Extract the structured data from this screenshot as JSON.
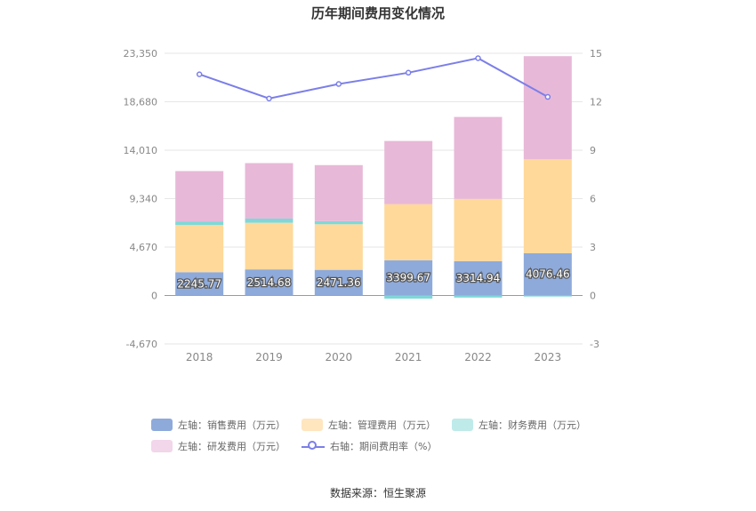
{
  "chart_data": {
    "type": "bar",
    "title": "历年期间费用变化情况",
    "categories": [
      "2018",
      "2019",
      "2020",
      "2021",
      "2022",
      "2023"
    ],
    "stacked": true,
    "series": [
      {
        "name": "左轴：销售费用（万元）",
        "axis": "left",
        "color": "#8eaadb",
        "values": [
          2245.77,
          2514.68,
          2471.36,
          3399.67,
          3314.94,
          4076.46
        ],
        "labels": [
          "2245.77",
          "2514.68",
          "2471.36",
          "3399.67",
          "3314.94",
          "4076.46"
        ]
      },
      {
        "name": "左轴：管理费用（万元）",
        "axis": "left",
        "color": "#ffd99a",
        "values": [
          4550,
          4500,
          4400,
          5400,
          6000,
          9050
        ]
      },
      {
        "name": "左轴：财务费用（万元）",
        "axis": "left",
        "color": "#7fd8d8",
        "values": [
          350,
          400,
          300,
          -300,
          -200,
          -100
        ]
      },
      {
        "name": "左轴：研发费用（万元）",
        "axis": "left",
        "color": "#e8b8d8",
        "values": [
          4850,
          5350,
          5400,
          6100,
          7900,
          9950
        ]
      },
      {
        "name": "右轴：期间费用率（%）",
        "axis": "right",
        "type": "line",
        "color": "#7b7fe8",
        "values": [
          13.7,
          12.2,
          13.1,
          13.8,
          14.7,
          12.3
        ]
      }
    ],
    "left_axis": {
      "min": -4670,
      "max": 23350,
      "ticks": [
        "-4,670",
        "0",
        "4,670",
        "9,340",
        "14,010",
        "18,680",
        "23,350"
      ],
      "tick_values": [
        -4670,
        0,
        4670,
        9340,
        14010,
        18680,
        23350
      ]
    },
    "right_axis": {
      "min": -3,
      "max": 15,
      "ticks": [
        "-3",
        "0",
        "3",
        "6",
        "9",
        "12",
        "15"
      ],
      "tick_values": [
        -3,
        0,
        3,
        6,
        9,
        12,
        15
      ]
    },
    "grid": true,
    "legend_position": "bottom"
  },
  "legend": {
    "items": [
      {
        "label": "左轴：销售费用（万元）",
        "color": "#8eaadb"
      },
      {
        "label": "左轴：管理费用（万元）",
        "color": "#ffe6bf"
      },
      {
        "label": "左轴：财务费用（万元）",
        "color": "#bfeaea"
      },
      {
        "label": "左轴：研发费用（万元）",
        "color": "#f2d6ea"
      },
      {
        "label": "右轴：期间费用率（%）",
        "color": "#7b7fe8"
      }
    ]
  },
  "source": "数据来源：恒生聚源"
}
